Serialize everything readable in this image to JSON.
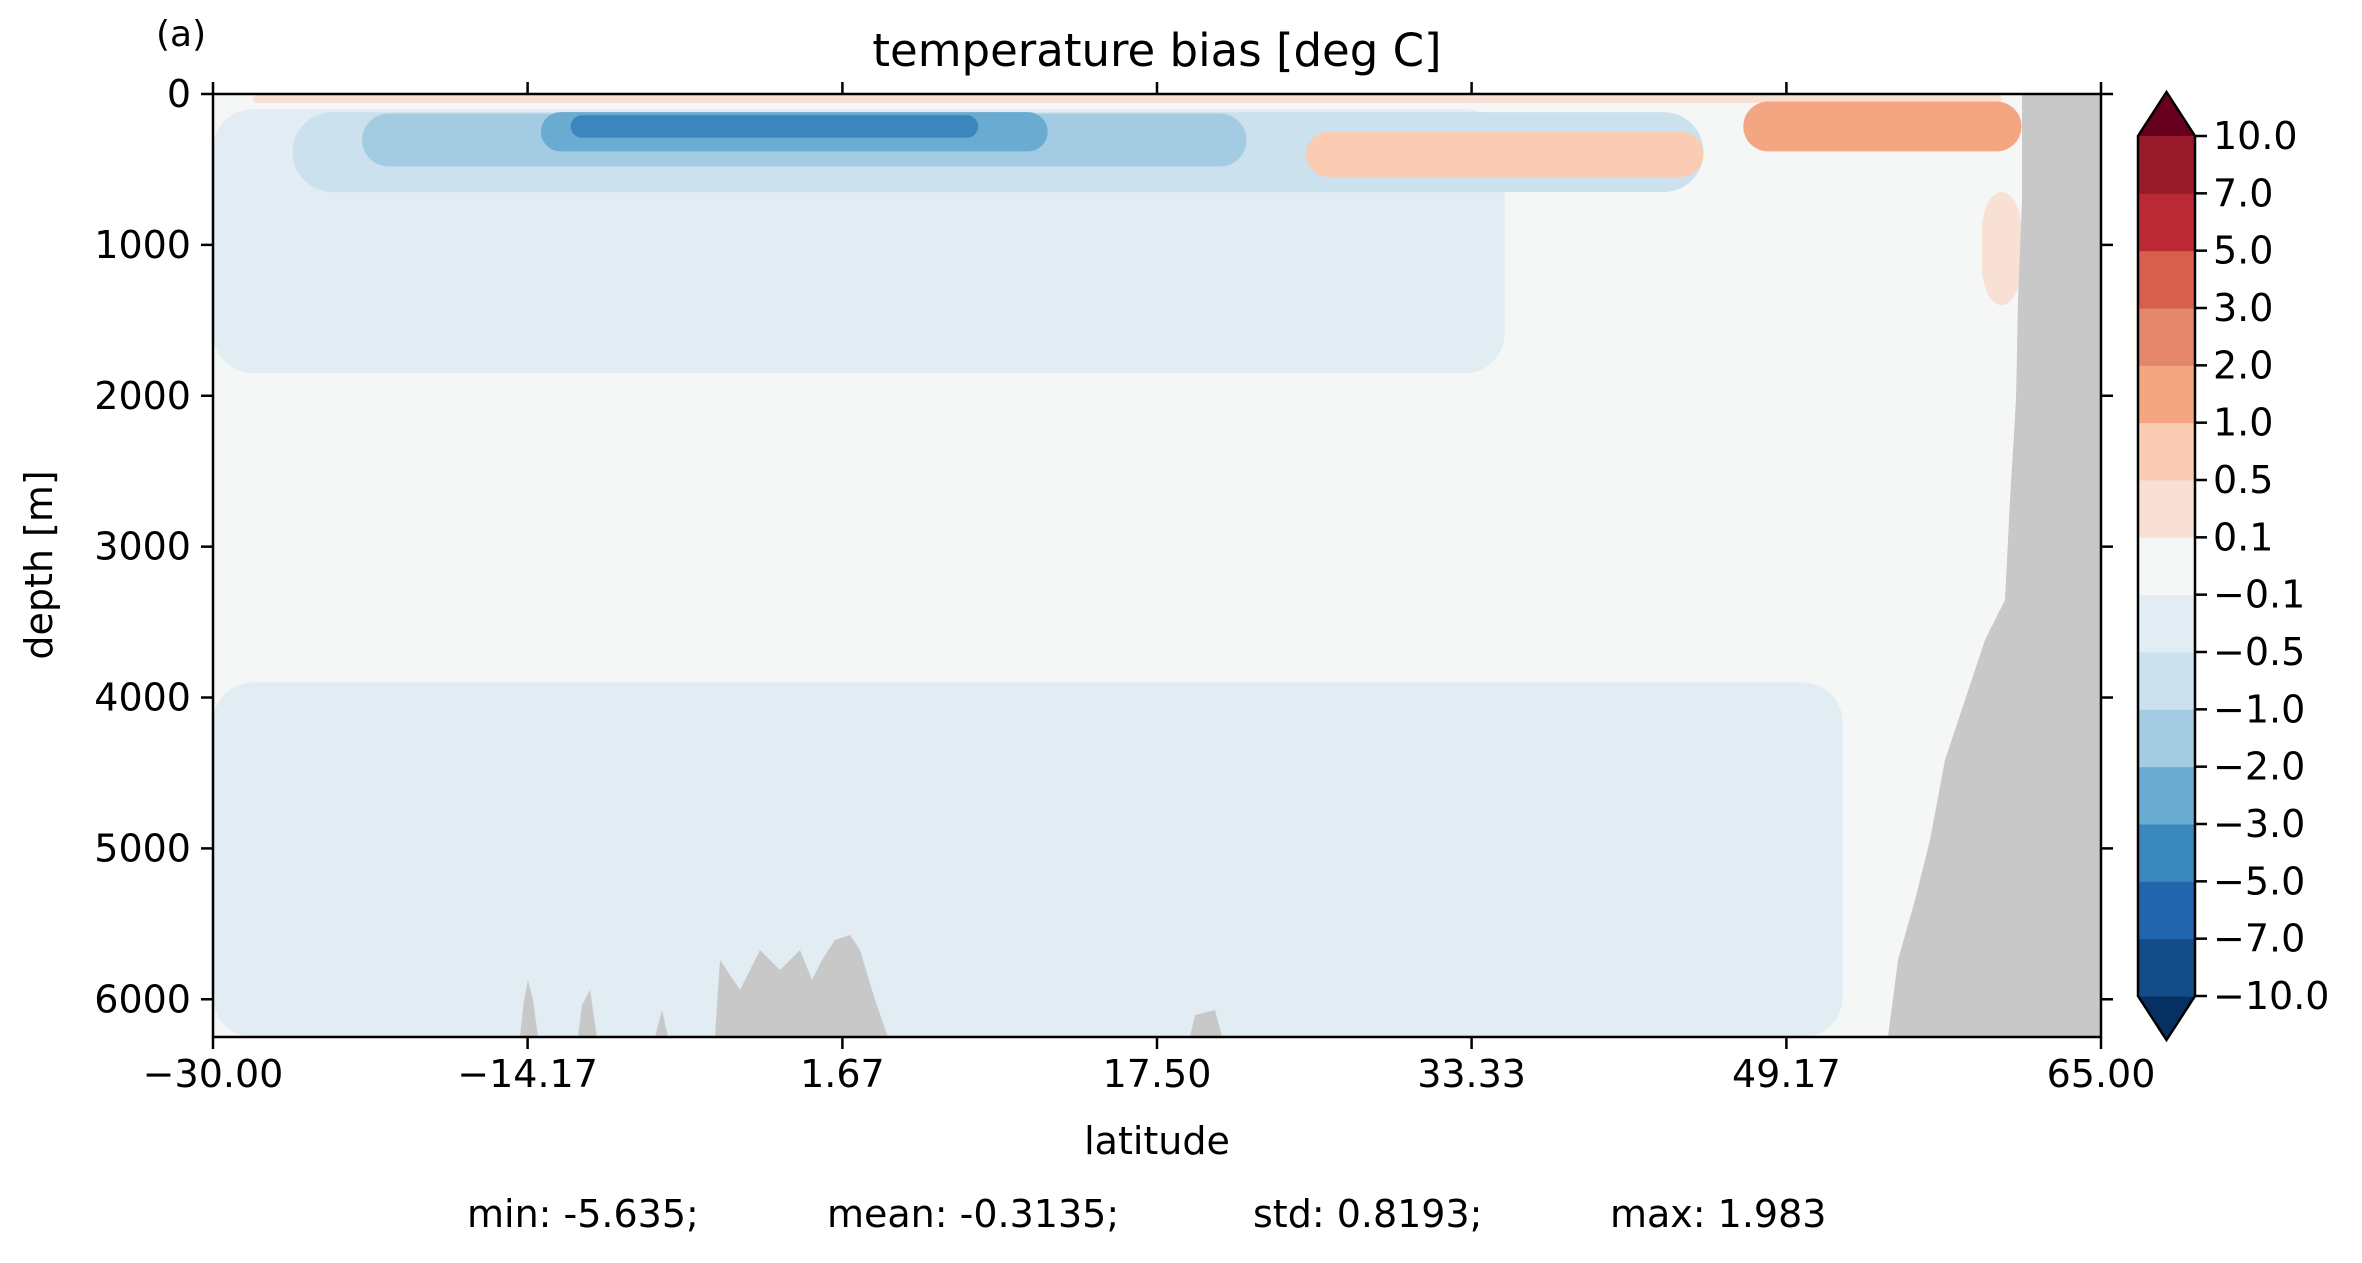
{
  "chart_data": {
    "type": "heatmap",
    "panel_label": "(a)",
    "title": "temperature bias [deg C]",
    "xlabel": "latitude",
    "ylabel": "depth [m]",
    "xlim": [
      -30.0,
      65.0
    ],
    "ylim": [
      6250,
      0
    ],
    "y_inverted": true,
    "x_ticks": [
      -30.0,
      -14.17,
      1.67,
      17.5,
      33.33,
      49.17,
      65.0
    ],
    "x_tick_labels": [
      "−30.00",
      "−14.17",
      "1.67",
      "17.50",
      "33.33",
      "49.17",
      "65.00"
    ],
    "y_ticks": [
      0,
      1000,
      2000,
      3000,
      4000,
      5000,
      6000
    ],
    "y_tick_labels": [
      "0",
      "1000",
      "2000",
      "3000",
      "4000",
      "5000",
      "6000"
    ],
    "grid": false,
    "colorbar": {
      "orientation": "vertical",
      "placement": "right",
      "extend": "both",
      "levels": [
        -10.0,
        -7.0,
        -5.0,
        -3.0,
        -2.0,
        -1.0,
        -0.5,
        -0.1,
        0.1,
        0.5,
        1.0,
        2.0,
        3.0,
        5.0,
        7.0,
        10.0
      ],
      "tick_labels": [
        "−10.0",
        "−7.0",
        "−5.0",
        "−3.0",
        "−2.0",
        "−1.0",
        "−0.5",
        "−0.1",
        "0.1",
        "0.5",
        "1.0",
        "2.0",
        "3.0",
        "5.0",
        "7.0",
        "10.0"
      ],
      "colors": [
        "#053061",
        "#134c87",
        "#2166ac",
        "#3a87bd",
        "#6aabd1",
        "#a3cbe2",
        "#cce1ee",
        "#e1ecf3",
        "#f5f6f6",
        "#f9e0d5",
        "#fbccb4",
        "#f4a582",
        "#e3866b",
        "#d6604d",
        "#bb2a34",
        "#981b2c",
        "#67001f"
      ]
    },
    "land_color": "#c8c8c8",
    "bands": [
      {
        "level": "-0.1 to -0.5",
        "color": "#e1ecf3",
        "top_depth": 100,
        "bottom_depth": 1850,
        "lat_start": -30.0,
        "lat_end": 35.0
      },
      {
        "level": "-0.1 to -0.5",
        "color": "#e1ecf3",
        "top_depth": 3900,
        "bottom_depth": 6250,
        "lat_start": -30.0,
        "lat_end": 52.0
      },
      {
        "level": "-0.5 to -1.0",
        "color": "#cce1ee",
        "top_depth": 120,
        "bottom_depth": 650,
        "lat_start": -26.0,
        "lat_end": 45.0
      },
      {
        "level": "-1.0 to -2.0",
        "color": "#a3cbe2",
        "top_depth": 130,
        "bottom_depth": 480,
        "lat_start": -22.5,
        "lat_end": 22.0
      },
      {
        "level": "-2.0 to -3.0",
        "color": "#6aabd1",
        "top_depth": 120,
        "bottom_depth": 380,
        "lat_start": -13.5,
        "lat_end": 12.0
      },
      {
        "level": "-3.0 to -5.0",
        "color": "#3a87bd",
        "top_depth": 140,
        "bottom_depth": 290,
        "lat_start": -12.0,
        "lat_end": 8.5
      },
      {
        "level": "0.1 to 0.5",
        "color": "#f9e0d5",
        "top_depth": 0,
        "bottom_depth": 60,
        "lat_start": -28.0,
        "lat_end": 60.0
      },
      {
        "level": "0.5 to 1.0",
        "color": "#fbccb4",
        "top_depth": 250,
        "bottom_depth": 550,
        "lat_start": 25.0,
        "lat_end": 45.0
      },
      {
        "level": "1.0 to 2.0",
        "color": "#f4a582",
        "top_depth": 50,
        "bottom_depth": 380,
        "lat_start": 47.0,
        "lat_end": 61.0
      },
      {
        "level": "0.1 to 0.5",
        "color": "#f9e0d5",
        "top_depth": 650,
        "bottom_depth": 1400,
        "lat_start": 59.0,
        "lat_end": 61.0
      }
    ],
    "stats": {
      "min": "min: -5.635;",
      "mean": "mean: -0.3135;",
      "std": "std: 0.8193;",
      "max": "max: 1.983"
    }
  }
}
